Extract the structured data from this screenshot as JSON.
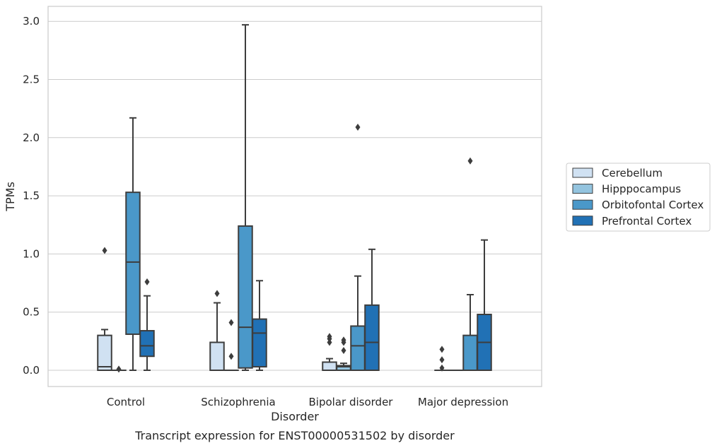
{
  "chart_data": {
    "type": "box",
    "xlabel": "Disorder",
    "ylabel": "TPMs",
    "caption": "Transcript expression for ENST00000531502 by disorder",
    "ylim": [
      -0.15,
      3.12
    ],
    "yticks": [
      0.0,
      0.5,
      1.0,
      1.5,
      2.0,
      2.5,
      3.0
    ],
    "ytick_labels": [
      "0.0",
      "0.5",
      "1.0",
      "1.5",
      "2.0",
      "2.5",
      "3.0"
    ],
    "grid": "horizontal",
    "legend_placement": "right",
    "categories": [
      "Control",
      "Schizophrenia",
      "Bipolar disorder",
      "Major depression"
    ],
    "series": [
      {
        "name": "Cerebellum",
        "color": "#d0e1f2",
        "boxes": [
          {
            "q1": 0.0,
            "median": 0.03,
            "q3": 0.3,
            "whislo": 0.0,
            "whishi": 0.35,
            "fliers": [
              1.03
            ]
          },
          {
            "q1": 0.0,
            "median": 0.0,
            "q3": 0.24,
            "whislo": 0.0,
            "whishi": 0.58,
            "fliers": [
              0.66
            ]
          },
          {
            "q1": 0.0,
            "median": 0.0,
            "q3": 0.07,
            "whislo": 0.0,
            "whishi": 0.1,
            "fliers": [
              0.24,
              0.27,
              0.29
            ]
          },
          {
            "q1": 0.0,
            "median": 0.0,
            "q3": 0.0,
            "whislo": 0.0,
            "whishi": 0.0,
            "fliers": [
              0.02,
              0.09,
              0.18
            ]
          }
        ]
      },
      {
        "name": "Hipppocampus",
        "color": "#94c4df",
        "boxes": [
          {
            "q1": 0.0,
            "median": 0.0,
            "q3": 0.0,
            "whislo": 0.0,
            "whishi": 0.0,
            "fliers": [
              0.01
            ]
          },
          {
            "q1": 0.0,
            "median": 0.0,
            "q3": 0.0,
            "whislo": 0.0,
            "whishi": 0.0,
            "fliers": [
              0.12,
              0.41
            ]
          },
          {
            "q1": 0.0,
            "median": 0.03,
            "q3": 0.04,
            "whislo": 0.0,
            "whishi": 0.06,
            "fliers": [
              0.17,
              0.24,
              0.26
            ]
          },
          {
            "q1": 0.0,
            "median": 0.0,
            "q3": 0.0,
            "whislo": 0.0,
            "whishi": 0.0,
            "fliers": []
          }
        ]
      },
      {
        "name": "Orbitofontal Cortex",
        "color": "#4a98c9",
        "boxes": [
          {
            "q1": 0.31,
            "median": 0.93,
            "q3": 1.53,
            "whislo": 0.0,
            "whishi": 2.17,
            "fliers": []
          },
          {
            "q1": 0.02,
            "median": 0.37,
            "q3": 1.24,
            "whislo": 0.0,
            "whishi": 2.97,
            "fliers": []
          },
          {
            "q1": 0.0,
            "median": 0.21,
            "q3": 0.38,
            "whislo": 0.0,
            "whishi": 0.81,
            "fliers": [
              2.09
            ]
          },
          {
            "q1": 0.0,
            "median": 0.0,
            "q3": 0.3,
            "whislo": 0.0,
            "whishi": 0.65,
            "fliers": [
              1.8
            ]
          }
        ]
      },
      {
        "name": "Prefrontal Cortex",
        "color": "#2171b5",
        "boxes": [
          {
            "q1": 0.12,
            "median": 0.21,
            "q3": 0.34,
            "whislo": 0.0,
            "whishi": 0.64,
            "fliers": [
              0.76
            ]
          },
          {
            "q1": 0.03,
            "median": 0.32,
            "q3": 0.44,
            "whislo": 0.0,
            "whishi": 0.77,
            "fliers": []
          },
          {
            "q1": 0.0,
            "median": 0.24,
            "q3": 0.56,
            "whislo": 0.0,
            "whishi": 1.04,
            "fliers": []
          },
          {
            "q1": 0.0,
            "median": 0.24,
            "q3": 0.48,
            "whislo": 0.0,
            "whishi": 1.12,
            "fliers": []
          }
        ]
      }
    ]
  }
}
